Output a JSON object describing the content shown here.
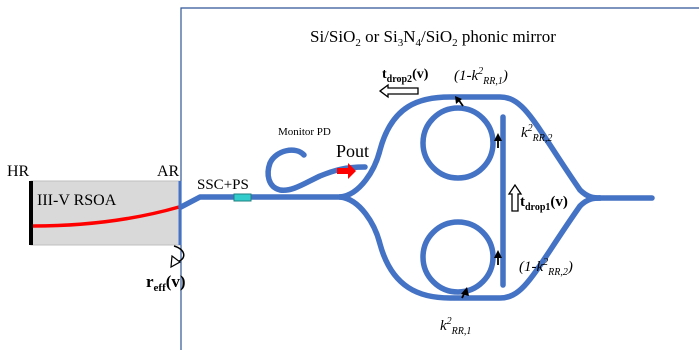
{
  "title": {
    "prefix": "Si/SiO",
    "sub1": "2",
    "mid1": " or Si",
    "sub2": "3",
    "mid2": "N",
    "sub3": "4",
    "mid3": "/SiO",
    "sub4": "2",
    "suffix": " phonic mirror"
  },
  "rsoa": {
    "label": "III-V RSOA",
    "hr": "HR",
    "ar": "AR"
  },
  "ssc_label": "SSC+PS",
  "monitor_label": "Monitor PD",
  "pout_label": "Pout",
  "reff": {
    "base": "r",
    "sub": "eff",
    "tail": "(v)"
  },
  "tdrop1": {
    "base": "t",
    "sub": "drop1",
    "tail": "(v)"
  },
  "tdrop2": {
    "base": "t",
    "sub": "drop2",
    "tail": "(v)"
  },
  "kappa_top": {
    "pre": "(1-",
    "k": "k",
    "sup": "2",
    "sub": "RR,1",
    "post": ")"
  },
  "kappa_right_top": {
    "k": "k",
    "sup": "2",
    "sub": "RR,2"
  },
  "kappa_right_bottom": {
    "pre": "(1-",
    "k": "k",
    "sup": "2",
    "sub": "RR,2",
    "post": ")"
  },
  "kappa_bottom": {
    "k": "k",
    "sup": "2",
    "sub": "RR,1"
  },
  "colors": {
    "waveguide": "#4472c4",
    "chip_fill": "#d9d9d9",
    "signal": "#ff0000",
    "pout_arrow": "#ff0000",
    "ssc": "#33cccc"
  }
}
